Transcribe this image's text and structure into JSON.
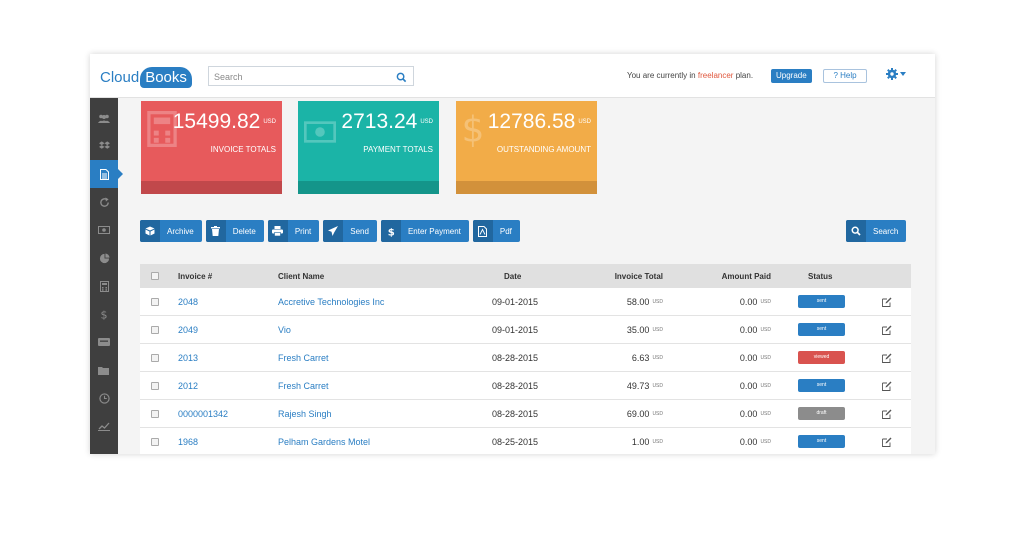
{
  "app": {
    "logo_part1": "Cloud",
    "logo_part2": "Books",
    "search": {
      "placeholder": "Search",
      "value": ""
    },
    "plan_prefix": "You are currently in",
    "plan_name": "freelancer",
    "plan_suffix": "plan.",
    "upgrade_label": "Upgrade",
    "help_label": "? Help"
  },
  "sidebar": {
    "items": [
      {
        "icon": "users-icon",
        "active": false
      },
      {
        "icon": "dropbox-icon",
        "active": false
      },
      {
        "icon": "document-icon",
        "active": true
      },
      {
        "icon": "refresh-icon",
        "active": false
      },
      {
        "icon": "money-icon",
        "active": false
      },
      {
        "icon": "pie-chart-icon",
        "active": false
      },
      {
        "icon": "calculator-icon",
        "active": false
      },
      {
        "icon": "dollar-icon",
        "active": false
      },
      {
        "icon": "card-icon",
        "active": false
      },
      {
        "icon": "folder-icon",
        "active": false
      },
      {
        "icon": "clock-icon",
        "active": false
      },
      {
        "icon": "line-chart-icon",
        "active": false
      }
    ]
  },
  "cards": [
    {
      "amount": "15499.82",
      "currency": "USD",
      "label": "INVOICE TOTALS",
      "color": "#e75a5c",
      "bar": "#c1484b",
      "icon": "calculator-icon"
    },
    {
      "amount": "2713.24",
      "currency": "USD",
      "label": "PAYMENT TOTALS",
      "color": "#1bb4a7",
      "bar": "#14958a",
      "icon": "money-icon"
    },
    {
      "amount": "12786.58",
      "currency": "USD",
      "label": "OUTSTANDING AMOUNT",
      "color": "#f2ac48",
      "bar": "#d2913b",
      "icon": "dollar-icon"
    }
  ],
  "toolbar": {
    "buttons": [
      {
        "label": "Archive",
        "icon": "archive-icon"
      },
      {
        "label": "Delete",
        "icon": "trash-icon"
      },
      {
        "label": "Print",
        "icon": "print-icon"
      },
      {
        "label": "Send",
        "icon": "send-icon"
      },
      {
        "label": "Enter Payment",
        "icon": "dollar-icon"
      },
      {
        "label": "Pdf",
        "icon": "pdf-icon"
      }
    ],
    "search_label": "Search"
  },
  "table": {
    "headers": [
      "Invoice #",
      "Client Name",
      "Date",
      "Invoice Total",
      "Amount Paid",
      "Status"
    ],
    "rows": [
      {
        "invoice": "2048",
        "client": "Accretive Technologies Inc",
        "date": "09-01-2015",
        "total": "58.00",
        "paid": "0.00",
        "unit": "USD",
        "status": "sent",
        "status_color": "#2a7ec3"
      },
      {
        "invoice": "2049",
        "client": "Vio",
        "date": "09-01-2015",
        "total": "35.00",
        "paid": "0.00",
        "unit": "USD",
        "status": "sent",
        "status_color": "#2a7ec3"
      },
      {
        "invoice": "2013",
        "client": "Fresh Carret",
        "date": "08-28-2015",
        "total": "6.63",
        "paid": "0.00",
        "unit": "USD",
        "status": "viewed",
        "status_color": "#d9534f"
      },
      {
        "invoice": "2012",
        "client": "Fresh Carret",
        "date": "08-28-2015",
        "total": "49.73",
        "paid": "0.00",
        "unit": "USD",
        "status": "sent",
        "status_color": "#2a7ec3"
      },
      {
        "invoice": "0000001342",
        "client": "Rajesh Singh",
        "date": "08-28-2015",
        "total": "69.00",
        "paid": "0.00",
        "unit": "USD",
        "status": "draft",
        "status_color": "#8c8c8c"
      },
      {
        "invoice": "1968",
        "client": "Pelham Gardens Motel",
        "date": "08-25-2015",
        "total": "1.00",
        "paid": "0.00",
        "unit": "USD",
        "status": "sent",
        "status_color": "#2a7ec3"
      }
    ]
  }
}
